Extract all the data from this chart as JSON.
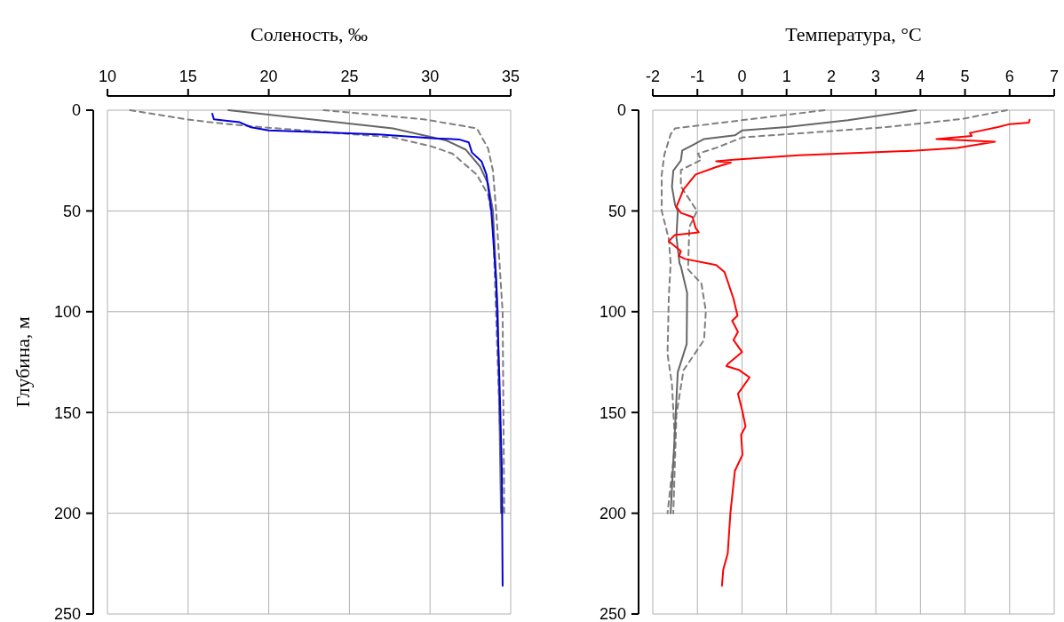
{
  "chart_data": [
    {
      "type": "line",
      "xlabel": "Соленость, ‰",
      "ylabel": "Глубина, м",
      "xlim": [
        10,
        35
      ],
      "xticks": [
        10,
        15,
        20,
        25,
        30,
        35
      ],
      "ylim": [
        250,
        0
      ],
      "yticks": [
        0,
        50,
        100,
        150,
        200,
        250
      ],
      "grid": true,
      "series": [
        {
          "color": "#7f7f7f",
          "line_style": "dashed",
          "x": [
            11.4,
            14.9,
            16.4,
            18.9,
            27.7,
            30.1,
            31.4,
            32.9,
            33.6,
            33.9,
            34.3,
            34.5
          ],
          "values": [
            0,
            4.5,
            6,
            8,
            13.5,
            18,
            21.6,
            32,
            42,
            55,
            150,
            200
          ]
        },
        {
          "color": "#7f7f7f",
          "line_style": "dashed",
          "x": [
            23.4,
            29.6,
            32.9,
            33.6,
            33.9,
            34.1,
            34.5,
            34.6
          ],
          "values": [
            0,
            4.5,
            9,
            19,
            30,
            50,
            100,
            200
          ]
        },
        {
          "color": "#666666",
          "line_style": "solid",
          "x": [
            17.5,
            27.7,
            31.0,
            32.2,
            33.1,
            33.6,
            33.9,
            34.2,
            34.4
          ],
          "values": [
            0,
            9,
            15,
            19.5,
            28,
            36.5,
            50,
            100,
            200
          ]
        },
        {
          "color": "#0000e0",
          "line_style": "solid",
          "x": [
            16.5,
            16.6,
            18.2,
            18.9,
            20.0,
            26.8,
            30.3,
            31.8,
            32.4,
            32.6,
            33.2,
            33.5,
            33.8,
            34.1,
            34.3,
            34.45,
            34.5
          ],
          "values": [
            1.8,
            4.5,
            6,
            8.5,
            10,
            12,
            14,
            14.5,
            16,
            21,
            25.5,
            32,
            50,
            85,
            133,
            178,
            236
          ]
        }
      ]
    },
    {
      "type": "line",
      "xlabel": "Температура, °C",
      "xlim": [
        -2,
        7
      ],
      "xticks": [
        -2,
        -1,
        0,
        1,
        2,
        3,
        4,
        5,
        6,
        7
      ],
      "ylim": [
        250,
        0
      ],
      "yticks": [
        0,
        50,
        100,
        150,
        200,
        250
      ],
      "grid": true,
      "series": [
        {
          "color": "#7f7f7f",
          "line_style": "dashed",
          "x": [
            1.85,
            -1.5,
            -1.6,
            -1.74,
            -1.8,
            -1.8,
            -1.64,
            -1.6,
            -1.64,
            -1.67,
            -1.57,
            -1.5,
            -1.67
          ],
          "values": [
            0,
            9,
            12,
            22,
            32,
            50,
            64,
            76,
            92,
            121,
            136,
            166,
            200
          ]
        },
        {
          "color": "#7f7f7f",
          "line_style": "dashed",
          "x": [
            5.94,
            4.95,
            3.24,
            0.01,
            -0.58,
            -0.99,
            -0.91,
            -1.37,
            -1.37,
            -1.01,
            -1.18,
            -1.21,
            -0.91,
            -0.81,
            -0.85,
            -1.31,
            -1.47,
            -1.54
          ],
          "values": [
            0,
            4.3,
            8.4,
            13.5,
            18.7,
            21.6,
            24.6,
            29.7,
            37.8,
            50,
            58,
            79,
            86,
            99.6,
            114,
            129,
            151,
            200
          ]
        },
        {
          "color": "#666666",
          "line_style": "solid",
          "x": [
            3.9,
            2.38,
            1.0,
            0.01,
            -0.16,
            -0.85,
            -1.08,
            -1.34,
            -1.37,
            -1.54,
            -1.57,
            -1.5,
            -1.44,
            -1.47,
            -1.4,
            -1.37,
            -1.23,
            -1.24,
            -1.44,
            -1.52,
            -1.6
          ],
          "values": [
            0,
            5,
            8.4,
            10,
            12.5,
            14.3,
            17,
            20,
            25,
            30,
            38,
            47,
            50,
            63,
            76,
            77.5,
            90.7,
            116,
            130,
            166,
            200
          ]
        },
        {
          "color": "#ff0000",
          "line_style": "solid",
          "x": [
            6.45,
            6.43,
            6.0,
            5.74,
            5.11,
            5.15,
            4.36,
            5.67,
            4.82,
            3.9,
            1.26,
            -0.19,
            -0.58,
            -0.25,
            -0.58,
            -1.04,
            -1.31,
            -1.47,
            -1.37,
            -1.11,
            -1.04,
            -0.97,
            -1.51,
            -1.64,
            -1.37,
            -1.41,
            -1.28,
            -0.58,
            -0.39,
            -0.32,
            -0.19,
            -0.1,
            -0.22,
            -0.09,
            -0.19,
            0.0,
            -0.32,
            -0.35,
            -0.06,
            0.17,
            -0.09,
            0.01,
            0.08,
            -0.02,
            0.01,
            -0.16,
            -0.26,
            -0.32,
            -0.42,
            -0.45
          ],
          "values": [
            4.7,
            6.2,
            6.9,
            8.4,
            11.3,
            12.8,
            14.3,
            15.7,
            18.7,
            20.1,
            22.4,
            24.6,
            25.3,
            26,
            28.2,
            31.9,
            39.3,
            48,
            51,
            53,
            58.4,
            60.6,
            62,
            65,
            70,
            72.4,
            73.8,
            76.8,
            80.4,
            85,
            93.6,
            102,
            104.5,
            110,
            114,
            120,
            126,
            127,
            129,
            132.6,
            140.7,
            149.5,
            157,
            161,
            171,
            179,
            200,
            220,
            228,
            236
          ]
        }
      ]
    }
  ]
}
